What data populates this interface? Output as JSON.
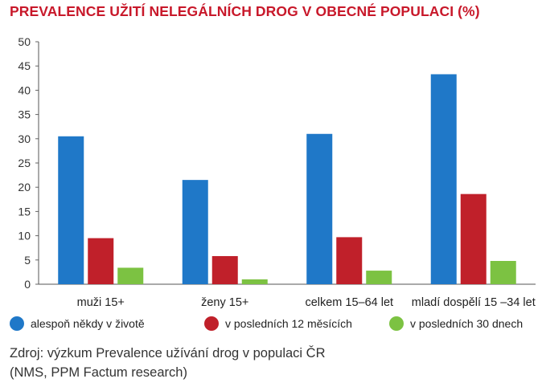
{
  "chart_data": {
    "type": "bar",
    "title": "PREVALENCE UŽITÍ NELEGÁLNÍCH DROG V OBECNÉ POPULACI (%)",
    "categories": [
      "muži 15+",
      "ženy 15+",
      "celkem 15–64 let",
      "mladí dospělí 15 –34 let"
    ],
    "series": [
      {
        "name": "alespoň někdy v životě",
        "color": "#1f78c8",
        "values": [
          30.5,
          21.5,
          31.0,
          43.3
        ]
      },
      {
        "name": "v posledních 12 měsících",
        "color": "#c0202a",
        "values": [
          9.5,
          5.8,
          9.7,
          18.6
        ]
      },
      {
        "name": "v posledních 30 dnech",
        "color": "#7cc242",
        "values": [
          3.4,
          1.0,
          2.8,
          4.8
        ]
      }
    ],
    "ylim": [
      0,
      50
    ],
    "yticks": [
      0,
      5,
      10,
      15,
      20,
      25,
      30,
      35,
      40,
      45,
      50
    ],
    "grid": false,
    "legend_position": "bottom"
  },
  "source": {
    "line1": "Zdroj: výzkum Prevalence užívání drog v populaci ČR",
    "line2": "(NMS, PPM Factum research)"
  }
}
